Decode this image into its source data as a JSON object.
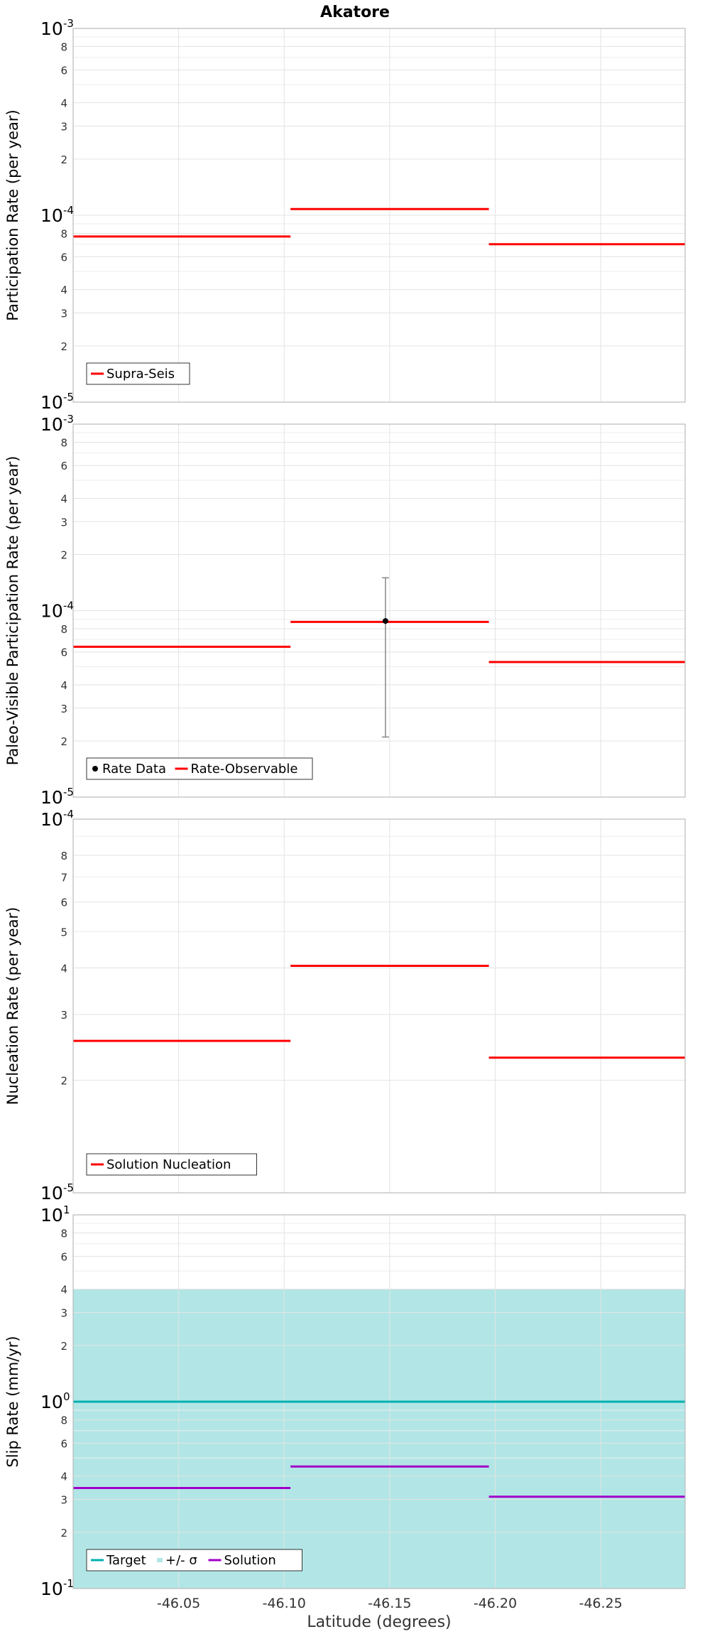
{
  "chart_data": {
    "title": "Akatore",
    "xlabel": "Latitude (degrees)",
    "xlim": [
      -46.0,
      -46.29
    ],
    "x_ticks": [
      {
        "v": -46.05,
        "label": "-46.05"
      },
      {
        "v": -46.1,
        "label": "-46.10"
      },
      {
        "v": -46.15,
        "label": "-46.15"
      },
      {
        "v": -46.2,
        "label": "-46.20"
      },
      {
        "v": -46.25,
        "label": "-46.25"
      }
    ],
    "panels": [
      {
        "id": "participation",
        "type": "line",
        "ylabel": "Participation Rate (per year)",
        "yscale": "log",
        "ylim": [
          1e-05,
          0.001
        ],
        "decade_labels": [
          {
            "v": 1e-05,
            "base": "10",
            "exp": "-5"
          },
          {
            "v": 0.0001,
            "base": "10",
            "exp": "-4"
          },
          {
            "v": 0.001,
            "base": "10",
            "exp": "-3"
          }
        ],
        "minor_labels": [
          {
            "v": 2e-05,
            "label": "2"
          },
          {
            "v": 3e-05,
            "label": "3"
          },
          {
            "v": 4e-05,
            "label": "4"
          },
          {
            "v": 6e-05,
            "label": "6"
          },
          {
            "v": 8e-05,
            "label": "8"
          },
          {
            "v": 0.0002,
            "label": "2"
          },
          {
            "v": 0.0003,
            "label": "3"
          },
          {
            "v": 0.0004,
            "label": "4"
          },
          {
            "v": 0.0006,
            "label": "6"
          },
          {
            "v": 0.0008,
            "label": "8"
          }
        ],
        "series": [
          {
            "name": "Supra-Seis",
            "color": "#ff0000",
            "segments": [
              {
                "x0": -46.0,
                "x1": -46.103,
                "y": 7.7e-05
              },
              {
                "x0": -46.103,
                "x1": -46.197,
                "y": 0.000108
              },
              {
                "x0": -46.197,
                "x1": -46.29,
                "y": 7e-05
              }
            ]
          }
        ],
        "legend": [
          {
            "label": "Supra-Seis",
            "kind": "line",
            "color": "#ff0000"
          }
        ]
      },
      {
        "id": "paleo",
        "type": "line",
        "ylabel": "Paleo-Visible Participation Rate (per year)",
        "yscale": "log",
        "ylim": [
          1e-05,
          0.001
        ],
        "decade_labels": [
          {
            "v": 1e-05,
            "base": "10",
            "exp": "-5"
          },
          {
            "v": 0.0001,
            "base": "10",
            "exp": "-4"
          },
          {
            "v": 0.001,
            "base": "10",
            "exp": "-3"
          }
        ],
        "minor_labels": [
          {
            "v": 2e-05,
            "label": "2"
          },
          {
            "v": 3e-05,
            "label": "3"
          },
          {
            "v": 4e-05,
            "label": "4"
          },
          {
            "v": 6e-05,
            "label": "6"
          },
          {
            "v": 8e-05,
            "label": "8"
          },
          {
            "v": 0.0002,
            "label": "2"
          },
          {
            "v": 0.0003,
            "label": "3"
          },
          {
            "v": 0.0004,
            "label": "4"
          },
          {
            "v": 0.0006,
            "label": "6"
          },
          {
            "v": 0.0008,
            "label": "8"
          }
        ],
        "series": [
          {
            "name": "Rate-Observable",
            "color": "#ff0000",
            "segments": [
              {
                "x0": -46.0,
                "x1": -46.103,
                "y": 6.4e-05
              },
              {
                "x0": -46.103,
                "x1": -46.197,
                "y": 8.7e-05
              },
              {
                "x0": -46.197,
                "x1": -46.29,
                "y": 5.3e-05
              }
            ]
          }
        ],
        "points": [
          {
            "name": "Rate Data",
            "x": -46.148,
            "y": 8.8e-05,
            "ylow": 2.1e-05,
            "yhigh": 0.00015,
            "color": "#000000"
          }
        ],
        "legend": [
          {
            "label": "Rate Data",
            "kind": "dot",
            "color": "#000000"
          },
          {
            "label": "Rate-Observable",
            "kind": "line",
            "color": "#ff0000"
          }
        ]
      },
      {
        "id": "nucleation",
        "type": "line",
        "ylabel": "Nucleation Rate (per year)",
        "yscale": "log",
        "ylim": [
          1e-05,
          0.0001
        ],
        "decade_labels": [
          {
            "v": 1e-05,
            "base": "10",
            "exp": "-5"
          },
          {
            "v": 0.0001,
            "base": "10",
            "exp": "-4"
          }
        ],
        "minor_labels": [
          {
            "v": 2e-05,
            "label": "2"
          },
          {
            "v": 3e-05,
            "label": "3"
          },
          {
            "v": 4e-05,
            "label": "4"
          },
          {
            "v": 5e-05,
            "label": "5"
          },
          {
            "v": 6e-05,
            "label": "6"
          },
          {
            "v": 7e-05,
            "label": "7"
          },
          {
            "v": 8e-05,
            "label": "8"
          }
        ],
        "series": [
          {
            "name": "Solution Nucleation",
            "color": "#ff0000",
            "segments": [
              {
                "x0": -46.0,
                "x1": -46.103,
                "y": 2.55e-05
              },
              {
                "x0": -46.103,
                "x1": -46.197,
                "y": 4.05e-05
              },
              {
                "x0": -46.197,
                "x1": -46.29,
                "y": 2.3e-05
              }
            ]
          }
        ],
        "legend": [
          {
            "label": "Solution Nucleation",
            "kind": "line",
            "color": "#ff0000"
          }
        ]
      },
      {
        "id": "slip",
        "type": "line",
        "ylabel": "Slip Rate (mm/yr)",
        "yscale": "log",
        "ylim": [
          0.1,
          10
        ],
        "decade_labels": [
          {
            "v": 0.1,
            "base": "10",
            "exp": "-1"
          },
          {
            "v": 1,
            "base": "10",
            "exp": "0"
          },
          {
            "v": 10,
            "base": "10",
            "exp": "1"
          }
        ],
        "minor_labels": [
          {
            "v": 0.2,
            "label": "2"
          },
          {
            "v": 0.3,
            "label": "3"
          },
          {
            "v": 0.4,
            "label": "4"
          },
          {
            "v": 0.6,
            "label": "6"
          },
          {
            "v": 0.8,
            "label": "8"
          },
          {
            "v": 2,
            "label": "2"
          },
          {
            "v": 3,
            "label": "3"
          },
          {
            "v": 4,
            "label": "4"
          },
          {
            "v": 6,
            "label": "6"
          },
          {
            "v": 8,
            "label": "8"
          }
        ],
        "band": {
          "name": "+/- σ",
          "ylow": 0.1,
          "yhigh": 4.0,
          "color": "#b2e6e6"
        },
        "series": [
          {
            "name": "Target",
            "color": "#00b0b0",
            "segments": [
              {
                "x0": -46.0,
                "x1": -46.29,
                "y": 1.0
              }
            ]
          },
          {
            "name": "Solution",
            "color": "#a000c8",
            "segments": [
              {
                "x0": -46.0,
                "x1": -46.103,
                "y": 0.345
              },
              {
                "x0": -46.103,
                "x1": -46.197,
                "y": 0.45
              },
              {
                "x0": -46.197,
                "x1": -46.29,
                "y": 0.31
              }
            ]
          }
        ],
        "legend": [
          {
            "label": "Target",
            "kind": "line",
            "color": "#00b0b0"
          },
          {
            "label": "+/- σ",
            "kind": "band",
            "color": "#b2e6e6"
          },
          {
            "label": "Solution",
            "kind": "line",
            "color": "#a000c8"
          }
        ]
      }
    ]
  }
}
